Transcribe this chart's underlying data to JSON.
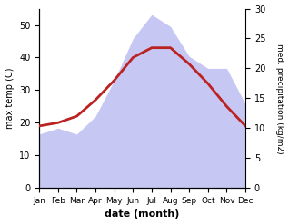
{
  "months": [
    "Jan",
    "Feb",
    "Mar",
    "Apr",
    "May",
    "Jun",
    "Jul",
    "Aug",
    "Sep",
    "Oct",
    "Nov",
    "Dec"
  ],
  "temperature": [
    19,
    20,
    22,
    27,
    33,
    40,
    43,
    43,
    38,
    32,
    25,
    19
  ],
  "precipitation": [
    9,
    10,
    9,
    12,
    18,
    25,
    29,
    27,
    22,
    20,
    20,
    14
  ],
  "temp_ylim": [
    0,
    55
  ],
  "precip_ylim": [
    0,
    30
  ],
  "temp_yticks": [
    0,
    10,
    20,
    30,
    40,
    50
  ],
  "precip_yticks": [
    0,
    5,
    10,
    15,
    20,
    25,
    30
  ],
  "temp_color": "#bb2222",
  "fill_color": "#aaaaee",
  "fill_alpha": 0.65,
  "ylabel_left": "max temp (C)",
  "ylabel_right": "med. precipitation (kg/m2)",
  "xlabel": "date (month)",
  "background_color": "#ffffff",
  "line_width": 2.0
}
